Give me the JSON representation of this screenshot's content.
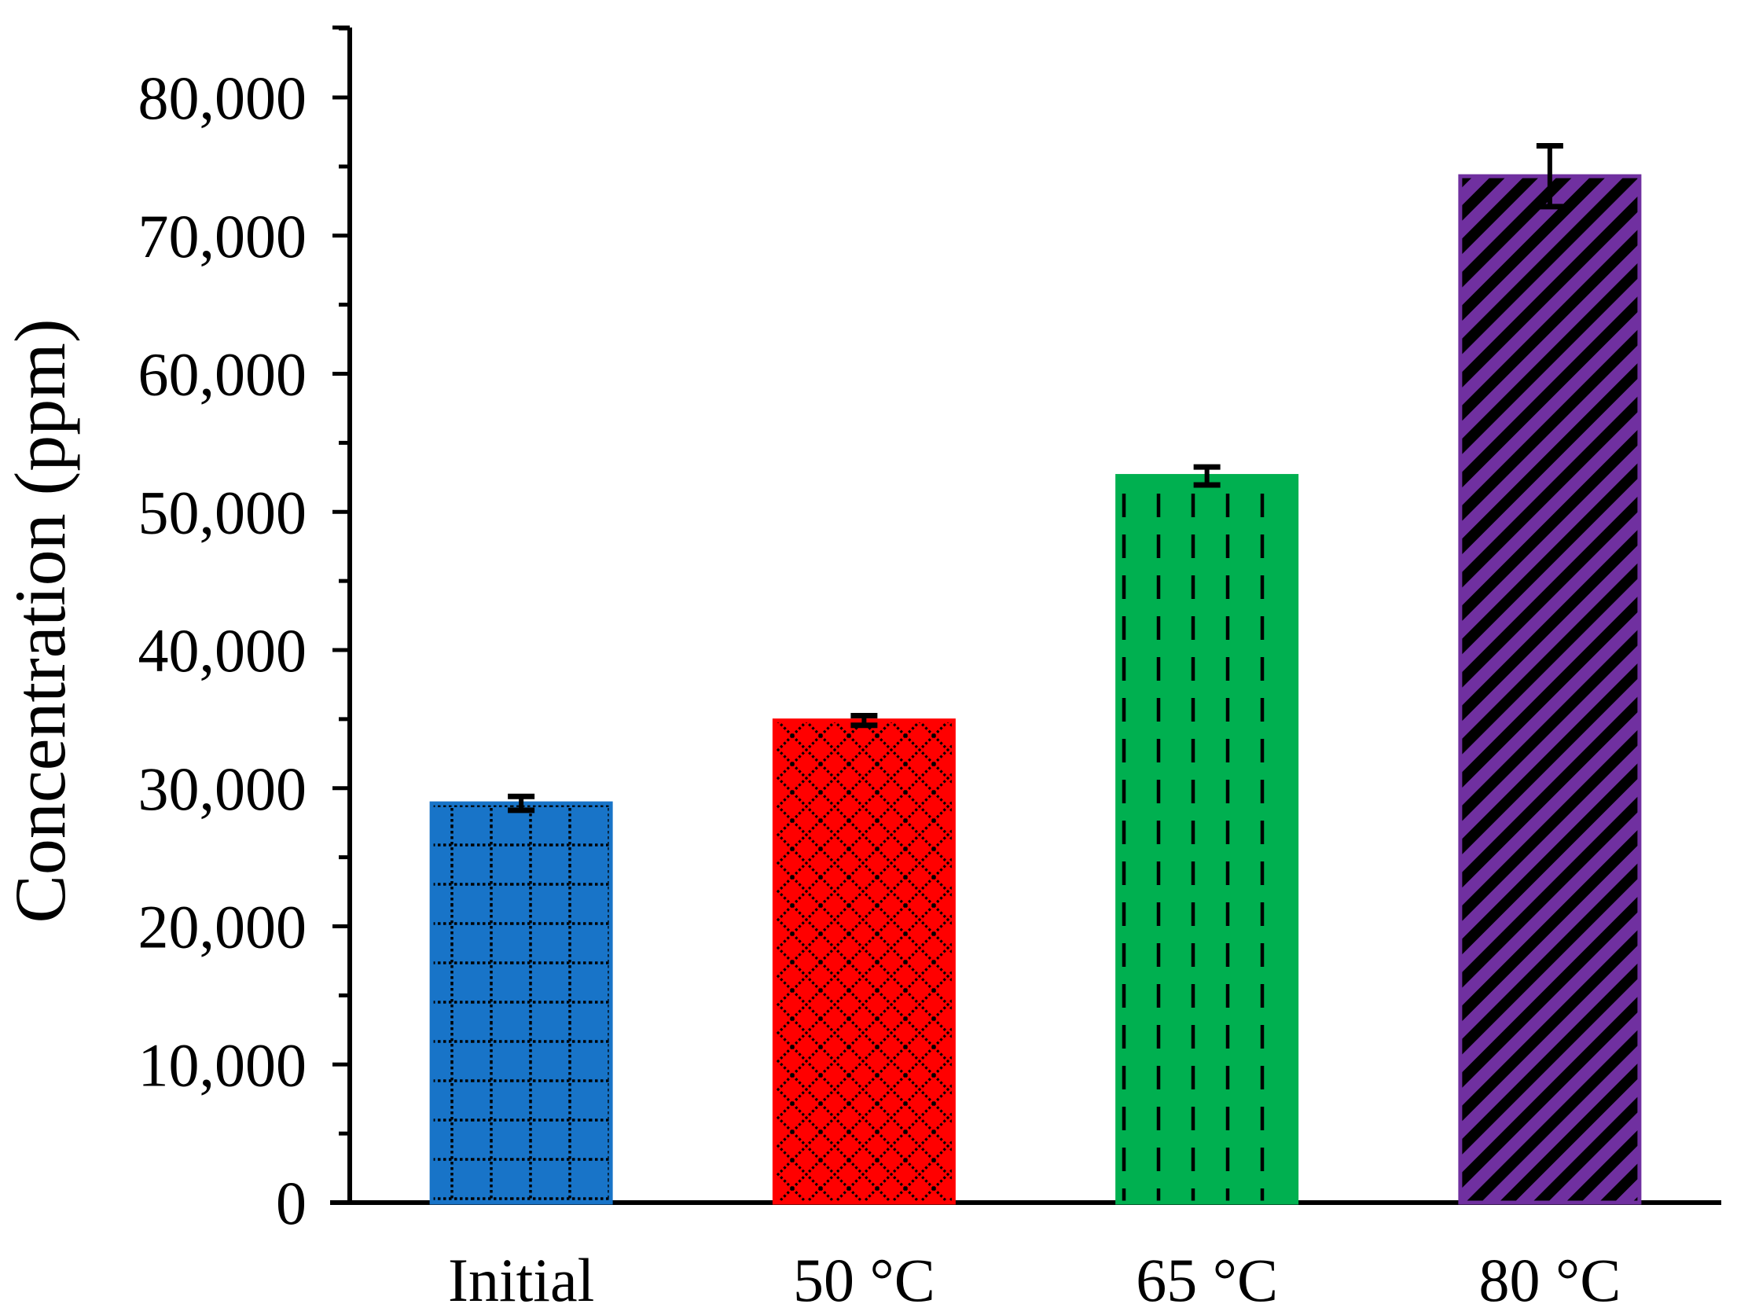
{
  "chart_data": {
    "type": "bar",
    "title": "",
    "xlabel": "",
    "ylabel": "Concentration (ppm)",
    "categories": [
      "Initial",
      "50 °C",
      "65 °C",
      "80 °C"
    ],
    "values": [
      28900,
      34900,
      52600,
      74300
    ],
    "errors": [
      500,
      350,
      650,
      2200
    ],
    "ylim": [
      0,
      85000
    ],
    "yticks": [
      0,
      10000,
      20000,
      30000,
      40000,
      50000,
      60000,
      70000,
      80000
    ],
    "ytick_labels": [
      "0",
      "10,000",
      "20,000",
      "30,000",
      "40,000",
      "50,000",
      "60,000",
      "70,000",
      "80,000"
    ],
    "grid": false,
    "legend": "none",
    "bar_colors": [
      "#1874C8",
      "#FF0000",
      "#00B050",
      "#7030A0"
    ],
    "bar_patterns": [
      "dotted-grid",
      "diamond-crosshatch",
      "dashed-vertical",
      "diagonal-stripes"
    ]
  }
}
